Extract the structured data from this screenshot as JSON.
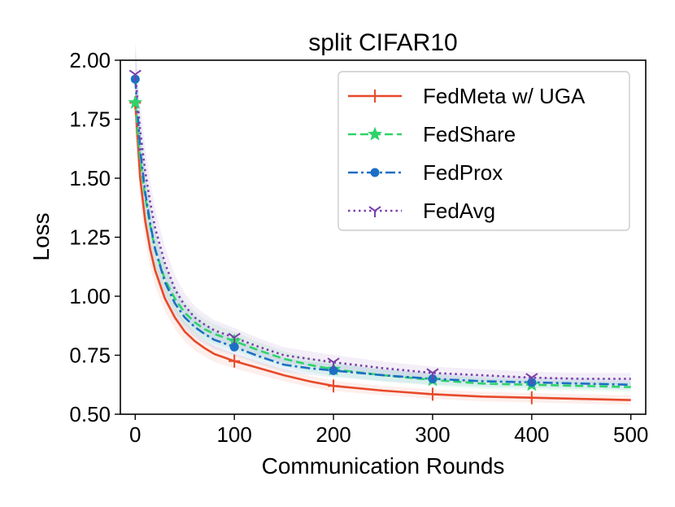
{
  "chart_data": {
    "type": "line",
    "title": "split CIFAR10",
    "xlabel": "Communication Rounds",
    "ylabel": "Loss",
    "xlim": [
      -15,
      515
    ],
    "ylim": [
      0.5,
      2.0
    ],
    "xticks": [
      0,
      100,
      200,
      300,
      400,
      500
    ],
    "xtick_labels": [
      "0",
      "100",
      "200",
      "300",
      "400",
      "500"
    ],
    "yticks": [
      0.5,
      0.75,
      1.0,
      1.25,
      1.5,
      1.75,
      2.0
    ],
    "ytick_labels": [
      "0.50",
      "0.75",
      "1.00",
      "1.25",
      "1.50",
      "1.75",
      "2.00"
    ],
    "grid": false,
    "legend_position": "top-right",
    "x": [
      0,
      5,
      10,
      15,
      20,
      30,
      40,
      50,
      60,
      70,
      80,
      90,
      100,
      125,
      150,
      175,
      200,
      250,
      300,
      350,
      400,
      450,
      500
    ],
    "series": [
      {
        "name": "FedMeta w/ UGA",
        "color": "#e8492a",
        "linestyle": "solid",
        "marker": "plus",
        "values": [
          1.82,
          1.5,
          1.32,
          1.2,
          1.11,
          0.99,
          0.91,
          0.85,
          0.81,
          0.78,
          0.755,
          0.74,
          0.725,
          0.695,
          0.665,
          0.64,
          0.62,
          0.6,
          0.585,
          0.575,
          0.57,
          0.565,
          0.56
        ]
      },
      {
        "name": "FedShare",
        "color": "#2fd36a",
        "linestyle": "dashed",
        "marker": "star",
        "values": [
          1.82,
          1.58,
          1.42,
          1.3,
          1.2,
          1.07,
          0.99,
          0.93,
          0.89,
          0.86,
          0.84,
          0.825,
          0.81,
          0.77,
          0.735,
          0.71,
          0.69,
          0.665,
          0.645,
          0.63,
          0.625,
          0.62,
          0.615
        ]
      },
      {
        "name": "FedProx",
        "color": "#1c6fc4",
        "linestyle": "dashdot",
        "marker": "circle",
        "values": [
          1.92,
          1.62,
          1.44,
          1.31,
          1.2,
          1.06,
          0.97,
          0.91,
          0.87,
          0.84,
          0.815,
          0.8,
          0.785,
          0.745,
          0.71,
          0.695,
          0.685,
          0.665,
          0.65,
          0.64,
          0.635,
          0.63,
          0.625
        ]
      },
      {
        "name": "FedAvg",
        "color": "#7b3fa8",
        "linestyle": "dotted",
        "marker": "tri_down",
        "values": [
          1.94,
          1.7,
          1.53,
          1.4,
          1.29,
          1.14,
          1.03,
          0.96,
          0.91,
          0.88,
          0.855,
          0.84,
          0.825,
          0.785,
          0.75,
          0.735,
          0.72,
          0.695,
          0.675,
          0.665,
          0.655,
          0.65,
          0.65
        ]
      }
    ]
  }
}
